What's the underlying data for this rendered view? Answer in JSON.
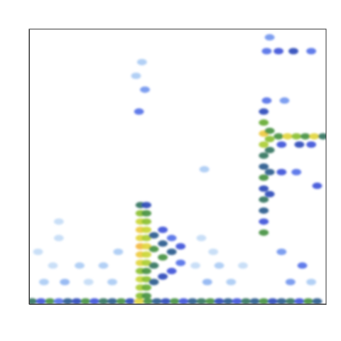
{
  "chart_data": {
    "type": "heatmap",
    "tick_labels": false,
    "grid": false,
    "xlim": [
      0,
      100
    ],
    "ylim": [
      0,
      100
    ],
    "zlim": [
      0,
      1
    ],
    "cells": [
      [
        1,
        1,
        0.55
      ],
      [
        4,
        1,
        0.4
      ],
      [
        7,
        1,
        0.6
      ],
      [
        10,
        1,
        0.35
      ],
      [
        13,
        1,
        0.5
      ],
      [
        16,
        1,
        0.45
      ],
      [
        19,
        1,
        0.6
      ],
      [
        22,
        1,
        0.4
      ],
      [
        25,
        1,
        0.55
      ],
      [
        28,
        1,
        0.5
      ],
      [
        31,
        1,
        0.6
      ],
      [
        34,
        1,
        0.45
      ],
      [
        37,
        1,
        0.85
      ],
      [
        40,
        1,
        0.6
      ],
      [
        43,
        1,
        0.5
      ],
      [
        46,
        1,
        0.45
      ],
      [
        49,
        1,
        0.6
      ],
      [
        52,
        1,
        0.4
      ],
      [
        55,
        1,
        0.5
      ],
      [
        58,
        1,
        0.55
      ],
      [
        61,
        1,
        0.6
      ],
      [
        64,
        1,
        0.45
      ],
      [
        67,
        1,
        0.5
      ],
      [
        70,
        1,
        0.4
      ],
      [
        73,
        1,
        0.55
      ],
      [
        76,
        1,
        0.5
      ],
      [
        79,
        1,
        0.6
      ],
      [
        82,
        1,
        0.45
      ],
      [
        85,
        1,
        0.5
      ],
      [
        88,
        1,
        0.55
      ],
      [
        91,
        1,
        0.4
      ],
      [
        94,
        1,
        0.6
      ],
      [
        97,
        1,
        0.5
      ],
      [
        37.5,
        3,
        0.7
      ],
      [
        37.5,
        6,
        0.75
      ],
      [
        37.5,
        9,
        0.8
      ],
      [
        37.5,
        12,
        0.7
      ],
      [
        37.5,
        15,
        0.85
      ],
      [
        37.5,
        18,
        0.9
      ],
      [
        37.5,
        21,
        0.95
      ],
      [
        37.5,
        24,
        0.85
      ],
      [
        37.5,
        27,
        0.9
      ],
      [
        37.5,
        30,
        0.8
      ],
      [
        37.5,
        33,
        0.7
      ],
      [
        37.5,
        36,
        0.55
      ],
      [
        39.5,
        3,
        0.6
      ],
      [
        39.5,
        6,
        0.65
      ],
      [
        39.5,
        9,
        0.7
      ],
      [
        39.5,
        12,
        0.6
      ],
      [
        39.5,
        15,
        0.75
      ],
      [
        39.5,
        18,
        0.8
      ],
      [
        39.5,
        21,
        0.85
      ],
      [
        39.5,
        24,
        0.75
      ],
      [
        39.5,
        27,
        0.8
      ],
      [
        39.5,
        30,
        0.7
      ],
      [
        39.5,
        33,
        0.6
      ],
      [
        39.5,
        36,
        0.45
      ],
      [
        42,
        8,
        0.5
      ],
      [
        42,
        14,
        0.55
      ],
      [
        42,
        20,
        0.6
      ],
      [
        42,
        25,
        0.5
      ],
      [
        45,
        10,
        0.45
      ],
      [
        45,
        17,
        0.6
      ],
      [
        45,
        22,
        0.5
      ],
      [
        45,
        27,
        0.4
      ],
      [
        48,
        12,
        0.4
      ],
      [
        48,
        19,
        0.5
      ],
      [
        48,
        24,
        0.35
      ],
      [
        51,
        15,
        0.35
      ],
      [
        51,
        21,
        0.4
      ],
      [
        79,
        26,
        0.6
      ],
      [
        79,
        30,
        0.4
      ],
      [
        79,
        34,
        0.5
      ],
      [
        79,
        38,
        0.55
      ],
      [
        79,
        42,
        0.45
      ],
      [
        79,
        46,
        0.6
      ],
      [
        79,
        50,
        0.5
      ],
      [
        79,
        54,
        0.55
      ],
      [
        79,
        58,
        0.75
      ],
      [
        79,
        62,
        0.9
      ],
      [
        79,
        66,
        0.65
      ],
      [
        79,
        70,
        0.45
      ],
      [
        81,
        40,
        0.45
      ],
      [
        81,
        48,
        0.5
      ],
      [
        81,
        56,
        0.55
      ],
      [
        81,
        60,
        0.7
      ],
      [
        81,
        63,
        0.6
      ],
      [
        84,
        61,
        0.6
      ],
      [
        87,
        61,
        0.85
      ],
      [
        90,
        61,
        0.7
      ],
      [
        93,
        61,
        0.6
      ],
      [
        96,
        61,
        0.85
      ],
      [
        99,
        61,
        0.55
      ],
      [
        85,
        58,
        0.4
      ],
      [
        91,
        58,
        0.45
      ],
      [
        95,
        58,
        0.4
      ],
      [
        85,
        48,
        0.4
      ],
      [
        90,
        48,
        0.35
      ],
      [
        80,
        92,
        0.35
      ],
      [
        84,
        92,
        0.4
      ],
      [
        89,
        92,
        0.45
      ],
      [
        95,
        92,
        0.35
      ],
      [
        81,
        97,
        0.3
      ],
      [
        80,
        74,
        0.35
      ],
      [
        86,
        74,
        0.3
      ],
      [
        97,
        43,
        0.4
      ],
      [
        5,
        8,
        0.2
      ],
      [
        12,
        8,
        0.25
      ],
      [
        20,
        8,
        0.15
      ],
      [
        28,
        8,
        0.2
      ],
      [
        60,
        8,
        0.25
      ],
      [
        68,
        8,
        0.2
      ],
      [
        88,
        8,
        0.3
      ],
      [
        95,
        8,
        0.2
      ],
      [
        8,
        14,
        0.15
      ],
      [
        17,
        14,
        0.2
      ],
      [
        25,
        14,
        0.2
      ],
      [
        56,
        14,
        0.15
      ],
      [
        64,
        14,
        0.2
      ],
      [
        72,
        14,
        0.15
      ],
      [
        92,
        14,
        0.35
      ],
      [
        3,
        19,
        0.15
      ],
      [
        30,
        19,
        0.2
      ],
      [
        62,
        19,
        0.15
      ],
      [
        85,
        19,
        0.3
      ],
      [
        10,
        24,
        0.15
      ],
      [
        58,
        24,
        0.15
      ],
      [
        37,
        70,
        0.35
      ],
      [
        39,
        78,
        0.3
      ],
      [
        36,
        83,
        0.2
      ],
      [
        38,
        88,
        0.2
      ],
      [
        10,
        30,
        0.15
      ],
      [
        59,
        49,
        0.2
      ]
    ]
  }
}
